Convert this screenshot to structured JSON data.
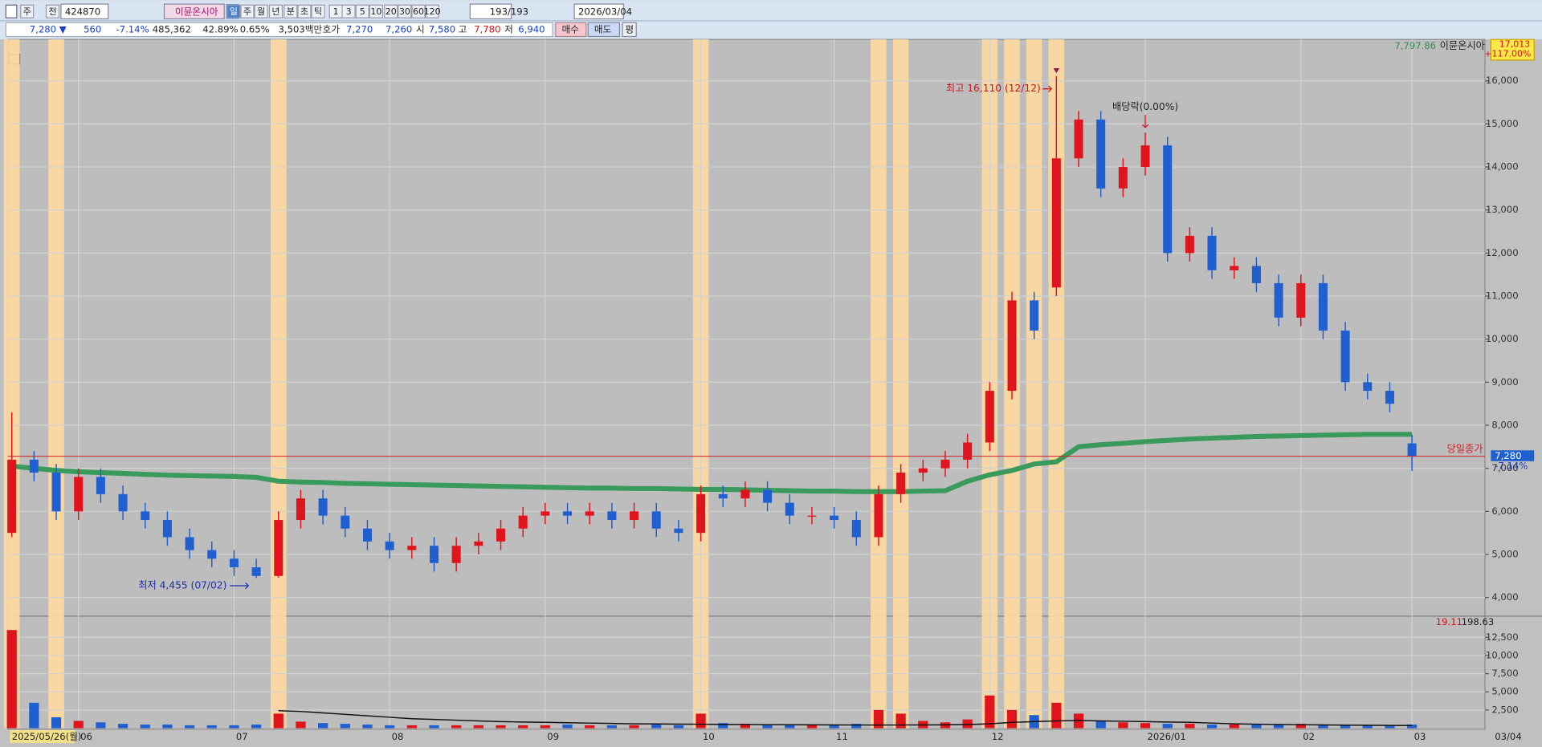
{
  "toolbar": {
    "items": [
      "주",
      "전",
      "424870",
      "이뮨온시아",
      "일",
      "주",
      "월",
      "년",
      "분",
      "초",
      "틱",
      "1",
      "3",
      "5",
      "10",
      "20",
      "30",
      "60",
      "120",
      "193/193",
      "2026/03/04"
    ]
  },
  "quote_bar": {
    "items": [
      "7,280 ▼",
      "560",
      "-7.14%",
      "485,362",
      "42.89%",
      "0.65%",
      "3,503백만",
      "호가",
      "7,270",
      "7,260",
      "시",
      "7,580",
      "고",
      "7,780",
      "저",
      "6,940",
      "매수",
      "매도",
      "평"
    ]
  },
  "chart_data": {
    "type": "candlestick",
    "legend": {
      "value": "7,797.86",
      "name": "이뮨온시아"
    },
    "max_box": {
      "price": "17,013",
      "change": "+117.00%"
    },
    "volume_legend": {
      "a": "19.11",
      "b": "198.63"
    },
    "categories": [
      "2025/05/26(월)",
      null,
      null,
      "06",
      null,
      null,
      null,
      null,
      null,
      null,
      "07",
      null,
      null,
      null,
      null,
      null,
      null,
      "08",
      null,
      null,
      null,
      null,
      null,
      null,
      "09",
      null,
      null,
      null,
      null,
      null,
      null,
      "10",
      null,
      null,
      null,
      null,
      null,
      "11",
      null,
      null,
      null,
      null,
      null,
      null,
      "12",
      null,
      null,
      null,
      null,
      null,
      null,
      "2026/01",
      null,
      null,
      null,
      null,
      null,
      null,
      "02",
      null,
      null,
      null,
      null,
      "03"
    ],
    "end_date": "03/04",
    "open": [
      5500,
      7200,
      6900,
      6000,
      6800,
      6400,
      6000,
      5800,
      5400,
      5100,
      4900,
      4700,
      4500,
      5800,
      6300,
      5900,
      5600,
      5300,
      5100,
      5200,
      4800,
      5200,
      5300,
      5600,
      5900,
      6000,
      5900,
      6000,
      5800,
      6000,
      5600,
      5500,
      6400,
      6300,
      6500,
      6200,
      5900,
      5900,
      5800,
      5400,
      6400,
      6900,
      7000,
      7200,
      7600,
      8800,
      10900,
      11200,
      14200,
      15100,
      13500,
      14000,
      14500,
      12000,
      12400,
      11600,
      11700,
      11300,
      10500,
      11300,
      10200,
      9000,
      8800,
      7580
    ],
    "high": [
      8300,
      7400,
      7100,
      7000,
      7000,
      6600,
      6200,
      6000,
      5600,
      5300,
      5100,
      4900,
      6000,
      6500,
      6500,
      6100,
      5800,
      5500,
      5400,
      5400,
      5400,
      5500,
      5800,
      6100,
      6200,
      6200,
      6200,
      6200,
      6200,
      6200,
      5800,
      6600,
      6600,
      6700,
      6700,
      6400,
      6100,
      6100,
      6000,
      6600,
      7100,
      7200,
      7400,
      7800,
      9000,
      11100,
      11100,
      16110,
      15300,
      15300,
      14200,
      14800,
      14700,
      12600,
      12600,
      11900,
      11900,
      11500,
      11500,
      11500,
      10400,
      9200,
      9000,
      7780
    ],
    "low": [
      5400,
      6700,
      5800,
      5800,
      6200,
      5800,
      5600,
      5200,
      4900,
      4700,
      4500,
      4455,
      4460,
      5600,
      5700,
      5400,
      5100,
      4900,
      4900,
      4600,
      4600,
      5000,
      5100,
      5400,
      5700,
      5700,
      5700,
      5600,
      5600,
      5400,
      5300,
      5300,
      6100,
      6100,
      6000,
      5700,
      5700,
      5600,
      5200,
      5200,
      6200,
      6700,
      6800,
      7000,
      7400,
      8600,
      10000,
      11000,
      14000,
      13300,
      13300,
      13800,
      11800,
      11800,
      11400,
      11400,
      11100,
      10300,
      10300,
      10000,
      8800,
      8600,
      8300,
      6940
    ],
    "close": [
      7200,
      6900,
      6000,
      6800,
      6400,
      6000,
      5800,
      5400,
      5100,
      4900,
      4700,
      4500,
      5800,
      6300,
      5900,
      5600,
      5300,
      5100,
      5200,
      4800,
      5200,
      5300,
      5600,
      5900,
      6000,
      5900,
      6000,
      5800,
      6000,
      5600,
      5500,
      6400,
      6300,
      6500,
      6200,
      5900,
      5900,
      5800,
      5400,
      6400,
      6900,
      7000,
      7200,
      7600,
      8800,
      10900,
      10200,
      14200,
      15100,
      13500,
      14000,
      14500,
      12000,
      12400,
      11600,
      11700,
      11300,
      10500,
      11300,
      10200,
      9000,
      8800,
      8500,
      7280
    ],
    "ma": {
      "color": "#3a9a5c",
      "values": [
        7050,
        7000,
        6950,
        6920,
        6900,
        6880,
        6860,
        6840,
        6830,
        6820,
        6810,
        6790,
        6700,
        6680,
        6670,
        6650,
        6640,
        6630,
        6620,
        6610,
        6600,
        6590,
        6580,
        6570,
        6560,
        6550,
        6540,
        6540,
        6530,
        6530,
        6520,
        6510,
        6510,
        6500,
        6490,
        6480,
        6470,
        6470,
        6460,
        6460,
        6460,
        6470,
        6480,
        6700,
        6850,
        6950,
        7100,
        7150,
        7500,
        7550,
        7580,
        7620,
        7650,
        7680,
        7700,
        7720,
        7740,
        7750,
        7760,
        7770,
        7780,
        7790,
        7790,
        7790
      ]
    },
    "volume": {
      "axis": "y2",
      "values": [
        13500,
        3500,
        1500,
        1000,
        800,
        600,
        500,
        500,
        400,
        400,
        400,
        500,
        2000,
        900,
        700,
        600,
        500,
        400,
        400,
        400,
        400,
        400,
        400,
        400,
        400,
        500,
        400,
        400,
        400,
        500,
        400,
        2000,
        700,
        600,
        500,
        400,
        400,
        400,
        600,
        2500,
        2000,
        1000,
        800,
        1200,
        4500,
        2500,
        1800,
        3500,
        2000,
        1000,
        800,
        700,
        600,
        600,
        500,
        500,
        500,
        500,
        600,
        500,
        400,
        400,
        400,
        500
      ]
    },
    "volume_ma": {
      "axis": "y2",
      "color": "#111111",
      "values": [
        null,
        null,
        null,
        null,
        null,
        null,
        null,
        null,
        null,
        null,
        null,
        null,
        2400,
        2300,
        2100,
        1900,
        1700,
        1500,
        1300,
        1200,
        1100,
        1000,
        900,
        850,
        800,
        750,
        700,
        650,
        600,
        580,
        560,
        540,
        520,
        500,
        480,
        470,
        460,
        450,
        440,
        430,
        440,
        450,
        460,
        500,
        600,
        800,
        900,
        1000,
        1050,
        1000,
        950,
        900,
        850,
        800,
        700,
        600,
        550,
        500,
        480,
        450,
        420,
        400,
        380,
        360
      ]
    },
    "up_color": "#e0141c",
    "down_color": "#1f5fd0",
    "ylim": [
      3611,
      16961
    ],
    "yticks": [
      {
        "value": 4000,
        "label": "4,000"
      },
      {
        "value": 5000,
        "label": "5,000"
      },
      {
        "value": 6000,
        "label": "6,000"
      },
      {
        "value": 7000,
        "label": "7,000"
      },
      {
        "value": 8000,
        "label": "8,000"
      },
      {
        "value": 9000,
        "label": "9,000"
      },
      {
        "value": 10000,
        "label": "10,000"
      },
      {
        "value": 11000,
        "label": "11,000"
      },
      {
        "value": 12000,
        "label": "12,000"
      },
      {
        "value": 13000,
        "label": "13,000"
      },
      {
        "value": 14000,
        "label": "14,000"
      },
      {
        "value": 15000,
        "label": "15,000"
      },
      {
        "value": 16000,
        "label": "16,000"
      }
    ],
    "y2lim": [
      0,
      15000
    ],
    "y2ticks": [
      {
        "value": 2500,
        "label": "2,500"
      },
      {
        "value": 5000,
        "label": "5,000"
      },
      {
        "value": 7500,
        "label": "7,500"
      },
      {
        "value": 10000,
        "label": "10,000"
      },
      {
        "value": 12500,
        "label": "12,500"
      }
    ],
    "last_close": {
      "value": 7280,
      "label": "7,280",
      "change": "-7.14%",
      "note": "당일종가"
    },
    "annotations": {
      "high": "최고 16,110 (12/12)",
      "low": "최저 4,455 (07/02)",
      "dividend": "배당락(0.00%)"
    },
    "grid": true
  }
}
